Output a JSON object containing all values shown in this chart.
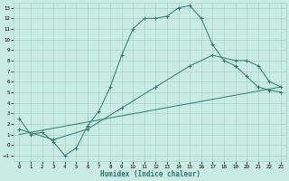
{
  "xlabel": "Humidex (Indice chaleur)",
  "bg_color": "#caeae4",
  "line_color": "#2d7a6e",
  "grid_color": "#a8d4cc",
  "xlim": [
    -0.5,
    23.5
  ],
  "ylim": [
    -1.5,
    13.5
  ],
  "xticks": [
    0,
    1,
    2,
    3,
    4,
    5,
    6,
    7,
    8,
    9,
    10,
    11,
    12,
    13,
    14,
    15,
    16,
    17,
    18,
    19,
    20,
    21,
    22,
    23
  ],
  "yticks": [
    -1,
    0,
    1,
    2,
    3,
    4,
    5,
    6,
    7,
    8,
    9,
    10,
    11,
    12,
    13
  ],
  "curve1_x": [
    0,
    1,
    2,
    3,
    4,
    5,
    6,
    7,
    8,
    9,
    10,
    11,
    12,
    13,
    14,
    15,
    16,
    17,
    18,
    19,
    20,
    21,
    22,
    23
  ],
  "curve1_y": [
    2.5,
    1.0,
    1.2,
    0.3,
    -1.0,
    -0.3,
    1.8,
    3.2,
    5.5,
    8.5,
    11.0,
    12.0,
    12.0,
    12.2,
    13.0,
    13.2,
    12.0,
    9.5,
    8.0,
    7.5,
    6.5,
    5.5,
    5.2,
    5.0
  ],
  "curve2_x": [
    0,
    3,
    6,
    9,
    12,
    15,
    17,
    19,
    20,
    21,
    22,
    23
  ],
  "curve2_y": [
    1.5,
    0.5,
    1.5,
    3.5,
    5.5,
    7.5,
    8.5,
    8.0,
    8.0,
    7.5,
    6.0,
    5.5
  ],
  "curve3_x": [
    0,
    23
  ],
  "curve3_y": [
    1.0,
    5.5
  ]
}
